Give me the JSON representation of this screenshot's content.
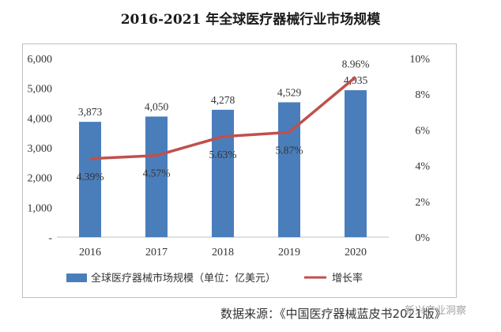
{
  "title": "2016-2021 年全球医疗器械行业市场规模",
  "source": "数据来源：《中国医疗器械蓝皮书2021版》",
  "watermark": "新兴产业洞察",
  "colors": {
    "bar": "#4a7ebb",
    "line": "#c0504d"
  },
  "chart_data": {
    "type": "bar",
    "categories": [
      "2016",
      "2017",
      "2018",
      "2019",
      "2020"
    ],
    "series": [
      {
        "name": "全球医疗器械市场规模（单位：亿美元）",
        "type": "bar",
        "axis": "left",
        "values": [
          3873,
          4050,
          4278,
          4529,
          4935
        ],
        "labels": [
          "3,873",
          "4,050",
          "4,278",
          "4,529",
          "4,935"
        ]
      },
      {
        "name": "增长率",
        "type": "line",
        "axis": "right",
        "values": [
          4.39,
          4.57,
          5.63,
          5.87,
          8.96
        ],
        "labels": [
          "4.39%",
          "4.57%",
          "5.63%",
          "5.87%",
          "8.96%"
        ]
      }
    ],
    "y_left": {
      "min": 0,
      "max": 6000,
      "ticks": [
        "-",
        "1,000",
        "2,000",
        "3,000",
        "4,000",
        "5,000",
        "6,000"
      ]
    },
    "y_right": {
      "min": 0,
      "max": 10,
      "ticks": [
        "0%",
        "2%",
        "4%",
        "6%",
        "8%",
        "10%"
      ]
    },
    "legend": "bottom"
  }
}
